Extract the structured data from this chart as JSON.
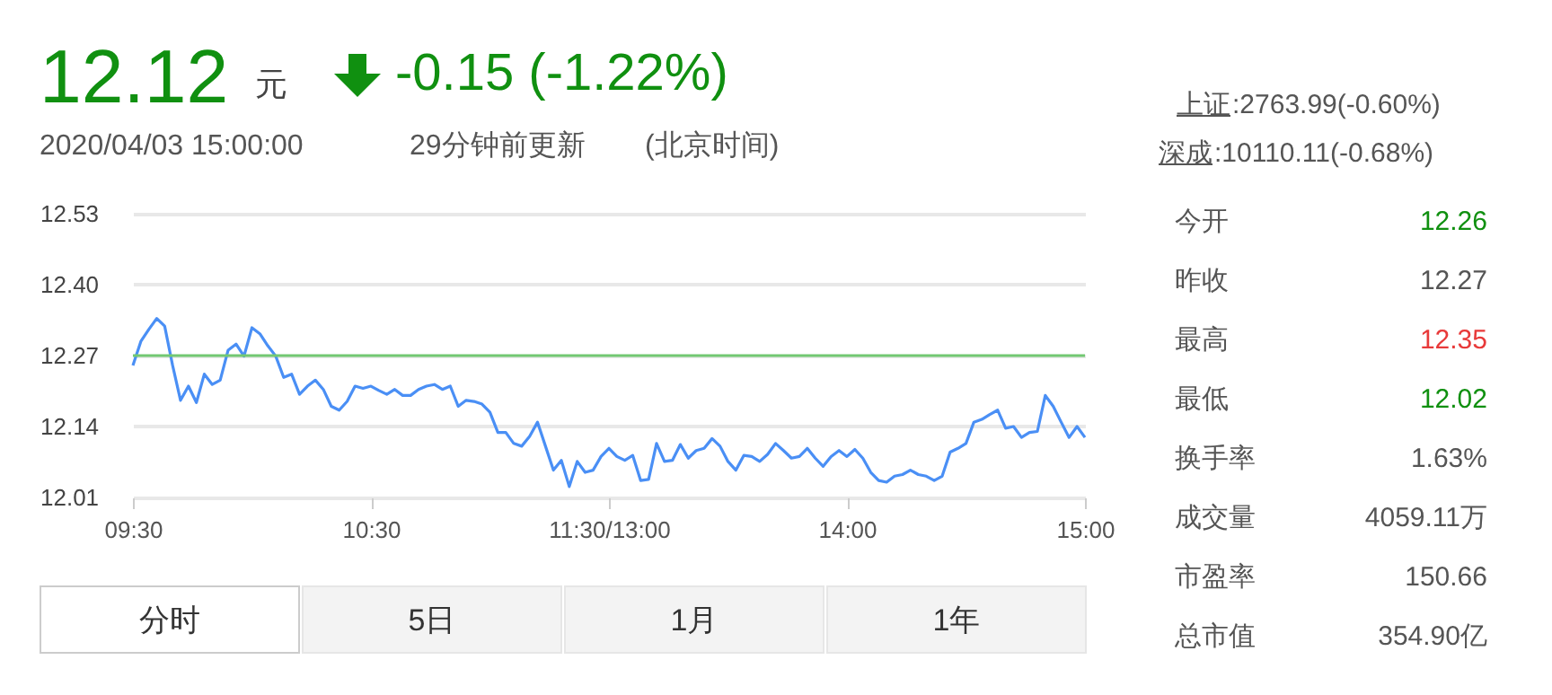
{
  "chart_data": {
    "type": "line",
    "annotations": [
      "12.12",
      "元",
      "-0.15 (-1.22%)",
      "2020/04/03 15:00:00",
      "29分钟前更新",
      "(北京时间)",
      "上证",
      ":2763.99(-0.60%)",
      "深成",
      ":10110.11(-0.68%)",
      "今开",
      "12.26",
      "昨收",
      "12.27",
      "最高",
      "12.35",
      "最低",
      "12.02",
      "换手率",
      "1.63%",
      "成交量",
      "4059.11万",
      "市盈率",
      "150.66",
      "总市值",
      "354.90亿",
      "分时",
      "5日",
      "1月",
      "1年"
    ],
    "categories": [
      "09:30",
      null,
      null,
      null,
      null,
      null,
      null,
      null,
      null,
      null,
      null,
      null,
      null,
      null,
      null,
      null,
      null,
      null,
      null,
      null,
      null,
      null,
      null,
      null,
      null,
      null,
      null,
      null,
      null,
      null,
      "10:30",
      null,
      null,
      null,
      null,
      null,
      null,
      null,
      null,
      null,
      null,
      null,
      null,
      null,
      null,
      null,
      null,
      null,
      null,
      null,
      null,
      null,
      null,
      null,
      null,
      null,
      null,
      null,
      null,
      null,
      "11:30/13:00",
      null,
      null,
      null,
      null,
      null,
      null,
      null,
      null,
      null,
      null,
      null,
      null,
      null,
      null,
      null,
      null,
      null,
      null,
      null,
      null,
      null,
      null,
      null,
      null,
      null,
      null,
      null,
      null,
      null,
      "14:00",
      null,
      null,
      null,
      null,
      null,
      null,
      null,
      null,
      null,
      null,
      null,
      null,
      null,
      null,
      null,
      null,
      null,
      null,
      null,
      null,
      null,
      null,
      null,
      null,
      null,
      null,
      null,
      null,
      null,
      "15:00"
    ],
    "ylim": [
      12.01,
      12.53
    ],
    "yticks": [
      12.01,
      12.14,
      12.27,
      {
        "value": 12.4,
        "label": "12.40"
      },
      12.53
    ],
    "grid": "y",
    "ref_lines": [
      {
        "axis": "y",
        "value": 12.27,
        "color": "#72c872"
      }
    ],
    "series": [
      {
        "color": "#4a8ff5",
        "values": [
          12.252,
          12.296,
          12.318,
          12.338,
          12.324,
          12.252,
          12.188,
          12.214,
          12.184,
          12.236,
          12.217,
          12.225,
          12.28,
          12.291,
          12.269,
          12.321,
          12.31,
          12.288,
          12.269,
          12.23,
          12.236,
          12.199,
          12.214,
          12.225,
          12.208,
          12.177,
          12.17,
          12.186,
          12.214,
          12.21,
          12.214,
          12.206,
          12.199,
          12.208,
          12.197,
          12.197,
          12.208,
          12.214,
          12.217,
          12.208,
          12.214,
          12.177,
          12.188,
          12.186,
          12.181,
          12.166,
          12.129,
          12.129,
          12.109,
          12.104,
          12.122,
          12.148,
          12.104,
          12.06,
          12.078,
          12.03,
          12.076,
          12.056,
          12.06,
          12.085,
          12.1,
          12.085,
          12.078,
          12.087,
          12.041,
          12.043,
          12.109,
          12.076,
          12.078,
          12.107,
          12.082,
          12.096,
          12.1,
          12.118,
          12.104,
          12.076,
          12.06,
          12.087,
          12.085,
          12.076,
          12.089,
          12.109,
          12.096,
          12.082,
          12.085,
          12.1,
          12.082,
          12.067,
          12.085,
          12.096,
          12.085,
          12.098,
          12.082,
          12.056,
          12.041,
          12.038,
          12.049,
          12.052,
          12.06,
          12.052,
          12.049,
          12.041,
          12.049,
          12.093,
          12.1,
          12.109,
          12.148,
          12.153,
          12.162,
          12.17,
          12.137,
          12.14,
          12.12,
          12.129,
          12.131,
          12.197,
          12.177,
          12.148,
          12.12,
          12.14,
          12.12
        ]
      }
    ]
  }
}
